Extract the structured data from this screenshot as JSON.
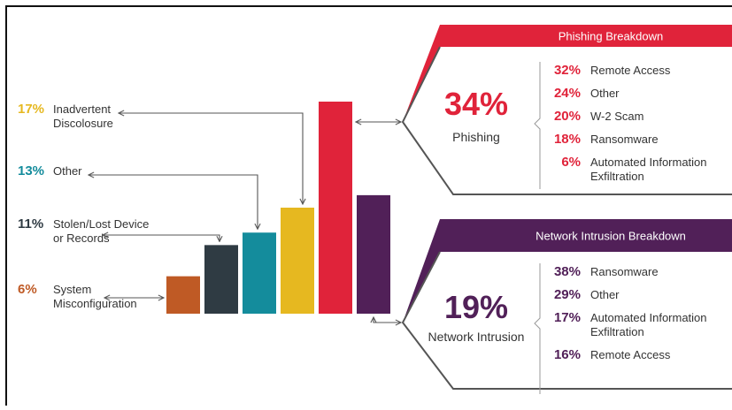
{
  "colors": {
    "misconfig": "#bf5a25",
    "stolen": "#2f3b43",
    "other": "#148c9c",
    "inadvertent": "#e6b820",
    "phishing": "#e0233a",
    "intrusion": "#512058",
    "text": "#333333",
    "line": "#555555"
  },
  "chart_data": {
    "type": "bar",
    "categories": [
      "System Misconfiguration",
      "Stolen/Lost Device or Records",
      "Other",
      "Inadvertent Discolosure",
      "Phishing",
      "Network Intrusion"
    ],
    "values": [
      6,
      11,
      13,
      17,
      34,
      19
    ],
    "ylim": [
      0,
      34
    ],
    "grid": false,
    "legend": "none",
    "left_labels": [
      {
        "key": "inadvertent",
        "pct": "17%",
        "lines": [
          "Inadvertent",
          "Discolosure"
        ]
      },
      {
        "key": "other",
        "pct": "13%",
        "lines": [
          "Other"
        ]
      },
      {
        "key": "stolen",
        "pct": "11%",
        "lines": [
          "Stolen/Lost Device",
          "or Records"
        ]
      },
      {
        "key": "misconfig",
        "pct": "6%",
        "lines": [
          "System",
          "Misconfiguration"
        ]
      }
    ],
    "breakdowns": [
      {
        "key": "phishing",
        "header": "Phishing Breakdown",
        "big_pct": "34%",
        "name": "Phishing",
        "items": [
          {
            "pct": "32%",
            "lines": [
              "Remote Access"
            ]
          },
          {
            "pct": "24%",
            "lines": [
              "Other"
            ]
          },
          {
            "pct": "20%",
            "lines": [
              "W-2 Scam"
            ]
          },
          {
            "pct": "18%",
            "lines": [
              "Ransomware"
            ]
          },
          {
            "pct": "6%",
            "lines": [
              "Automated Information",
              "Exfiltration"
            ]
          }
        ]
      },
      {
        "key": "intrusion",
        "header": "Network Intrusion Breakdown",
        "big_pct": "19%",
        "name": "Network Intrusion",
        "items": [
          {
            "pct": "38%",
            "lines": [
              "Ransomware"
            ]
          },
          {
            "pct": "29%",
            "lines": [
              "Other"
            ]
          },
          {
            "pct": "17%",
            "lines": [
              "Automated Information",
              "Exfiltration"
            ]
          },
          {
            "pct": "16%",
            "lines": [
              "Remote Access"
            ]
          }
        ]
      }
    ]
  }
}
